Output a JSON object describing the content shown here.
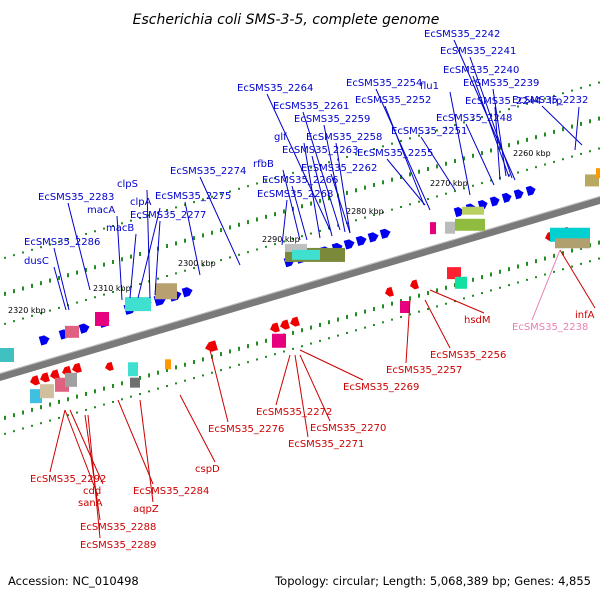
{
  "title": "Escherichia coli SMS-3-5, complete genome",
  "footer": {
    "accession": "Accession: NC_010498",
    "summary": "Topology: circular; Length: 5,068,389 bp; Genes: 4,855"
  },
  "kbp_labels": [
    "2260 kbp",
    "2270 kbp",
    "2280 kbp",
    "2290 kbp",
    "2300 kbp",
    "2310 kbp",
    "2320 kbp"
  ],
  "colors": {
    "forward_label": "#0000cc",
    "reverse_label": "#cc0000",
    "pseudo_label": "#e87fb5",
    "backbone": "#808080",
    "tick": "#228b22"
  },
  "forward_genes": [
    "EcSMS35_2242",
    "EcSMS35_2241",
    "EcSMS35_2240",
    "EcSMS35_2239",
    "lrp",
    "EcSMS35_2232",
    "EcSMS35_2254",
    "flu1",
    "EcSMS35_2244",
    "EcSMS35_2252",
    "EcSMS35_2248",
    "EcSMS35_2251",
    "EcSMS35_2264",
    "EcSMS35_2261",
    "EcSMS35_2259",
    "glf",
    "EcSMS35_2258",
    "EcSMS35_2263",
    "EcSMS35_2255",
    "rfbB",
    "EcSMS35_2262",
    "EcSMS35_2274",
    "EcSMS35_2266",
    "EcSMS35_2268",
    "clpS",
    "EcSMS35_2283",
    "EcSMS35_2275",
    "macA",
    "clpA",
    "EcSMS35_2277",
    "macB",
    "EcSMS35_2286",
    "dusC"
  ],
  "reverse_genes": [
    "infA",
    "EcSMS35_2238",
    "hsdM",
    "EcSMS35_2256",
    "EcSMS35_2257",
    "EcSMS35_2269",
    "EcSMS35_2276",
    "EcSMS35_2272",
    "EcSMS35_2270",
    "EcSMS35_2271",
    "cspD",
    "EcSMS35_2292",
    "cdd",
    "sanA",
    "EcSMS35_2284",
    "aqpZ",
    "EcSMS35_2288",
    "EcSMS35_2289"
  ]
}
